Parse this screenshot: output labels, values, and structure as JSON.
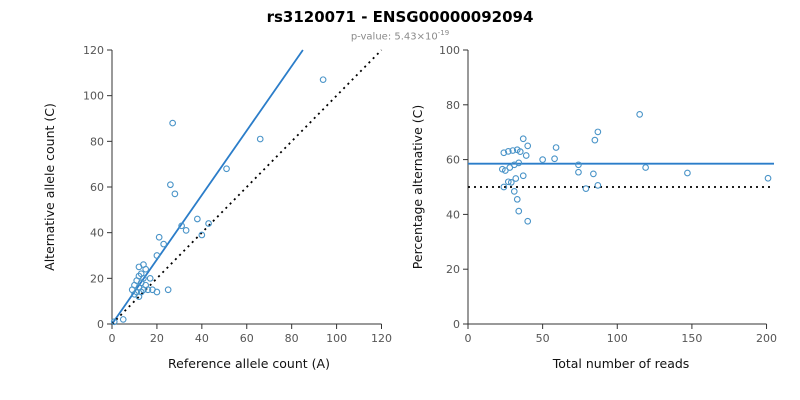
{
  "header": {
    "title": "rs3120071 - ENSG00000092094",
    "subtitle_prefix": "p-value: 5.43×10",
    "subtitle_exponent": "-19"
  },
  "colors": {
    "point": "#4a94c8",
    "fit_line": "#2b7dc9",
    "reference_line": "#000000",
    "axis": "#333333",
    "tick_text": "#555555",
    "label_text": "#111111"
  },
  "chart_data": [
    {
      "type": "scatter",
      "name": "allele-counts-scatter",
      "xlabel": "Reference allele count (A)",
      "ylabel": "Alternative allele count (C)",
      "xlim": [
        0,
        122
      ],
      "ylim": [
        0,
        120
      ],
      "xticks": [
        0,
        20,
        40,
        60,
        80,
        100,
        120
      ],
      "yticks": [
        0,
        20,
        40,
        60,
        80,
        100,
        120
      ],
      "grid": false,
      "points": [
        [
          1,
          1
        ],
        [
          5,
          2
        ],
        [
          9,
          15
        ],
        [
          10,
          13
        ],
        [
          10,
          17
        ],
        [
          11,
          14
        ],
        [
          11,
          19
        ],
        [
          12,
          12
        ],
        [
          12,
          16
        ],
        [
          12,
          21
        ],
        [
          12,
          25
        ],
        [
          13,
          14
        ],
        [
          13,
          18
        ],
        [
          13,
          22
        ],
        [
          14,
          15
        ],
        [
          14,
          20
        ],
        [
          14,
          26
        ],
        [
          15,
          17
        ],
        [
          15,
          24
        ],
        [
          16,
          15
        ],
        [
          17,
          20
        ],
        [
          18,
          15
        ],
        [
          20,
          14
        ],
        [
          20,
          30
        ],
        [
          21,
          38
        ],
        [
          23,
          35
        ],
        [
          25,
          15
        ],
        [
          26,
          61
        ],
        [
          27,
          88
        ],
        [
          28,
          57
        ],
        [
          31,
          43
        ],
        [
          33,
          41
        ],
        [
          38,
          46
        ],
        [
          40,
          39
        ],
        [
          43,
          44
        ],
        [
          51,
          68
        ],
        [
          66,
          81
        ],
        [
          94,
          107
        ]
      ],
      "lines": [
        {
          "name": "regression-line",
          "dash": "solid",
          "color_key": "fit_line",
          "x1": 0,
          "y1": 0,
          "x2": 85,
          "y2": 120
        },
        {
          "name": "identity-line",
          "dash": "dotted",
          "color_key": "reference_line",
          "x1": 0,
          "y1": 0,
          "x2": 120,
          "y2": 120
        }
      ]
    },
    {
      "type": "scatter",
      "name": "percentage-vs-reads-scatter",
      "xlabel": "Total number of reads",
      "ylabel": "Percentage alternative (C)",
      "xlim": [
        0,
        205
      ],
      "ylim": [
        0,
        100
      ],
      "xticks": [
        0,
        50,
        100,
        150,
        200
      ],
      "yticks": [
        0,
        20,
        40,
        60,
        80,
        100
      ],
      "grid": false,
      "points": [
        [
          24,
          62.5
        ],
        [
          23,
          56.5
        ],
        [
          27,
          63
        ],
        [
          25,
          56
        ],
        [
          30,
          63.3
        ],
        [
          24,
          50
        ],
        [
          28,
          57.1
        ],
        [
          33,
          63.6
        ],
        [
          37,
          67.6
        ],
        [
          27,
          51.9
        ],
        [
          31,
          58.1
        ],
        [
          35,
          62.9
        ],
        [
          29,
          51.7
        ],
        [
          34,
          58.8
        ],
        [
          40,
          65
        ],
        [
          32,
          53.1
        ],
        [
          39,
          61.5
        ],
        [
          31,
          48.4
        ],
        [
          37,
          54.1
        ],
        [
          33,
          45.5
        ],
        [
          34,
          41.2
        ],
        [
          50,
          60
        ],
        [
          59,
          64.4
        ],
        [
          58,
          60.3
        ],
        [
          40,
          37.5
        ],
        [
          87,
          70.1
        ],
        [
          115,
          76.5
        ],
        [
          85,
          67.1
        ],
        [
          74,
          58.1
        ],
        [
          74,
          55.4
        ],
        [
          84,
          54.8
        ],
        [
          79,
          49.4
        ],
        [
          87,
          50.6
        ],
        [
          119,
          57.1
        ],
        [
          147,
          55.1
        ],
        [
          201,
          53.2
        ]
      ],
      "lines": [
        {
          "name": "mean-percentage-line",
          "dash": "solid",
          "color_key": "fit_line",
          "x1": 0,
          "y1": 58.5,
          "x2": 205,
          "y2": 58.5
        },
        {
          "name": "fifty-percent-line",
          "dash": "dotted",
          "color_key": "reference_line",
          "x1": 0,
          "y1": 50,
          "x2": 205,
          "y2": 50
        }
      ]
    }
  ]
}
